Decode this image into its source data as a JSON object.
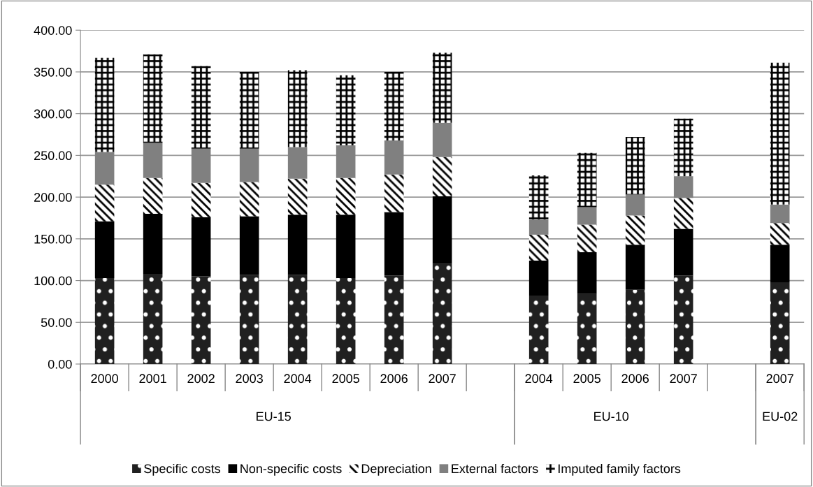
{
  "chart_data": {
    "type": "bar",
    "stacked": true,
    "categories": [
      "2000",
      "2001",
      "2002",
      "2003",
      "2004",
      "2005",
      "2006",
      "2007",
      null,
      "2004",
      "2005",
      "2006",
      "2007",
      null,
      "2007"
    ],
    "annotations": [
      "EU-15",
      "EU-10",
      "EU-02"
    ],
    "series": [
      {
        "name": "Specific costs",
        "color": "#202020",
        "values": [
          103,
          108,
          105,
          107,
          107,
          103,
          106,
          120,
          null,
          82,
          84,
          89,
          106,
          null,
          98
        ]
      },
      {
        "name": "Non-specific costs",
        "color": "#000000",
        "values": [
          68,
          72,
          71,
          70,
          72,
          76,
          76,
          81,
          null,
          42,
          50,
          54,
          56,
          null,
          45
        ]
      },
      {
        "name": "Depreciation",
        "color": "#ffffff",
        "values": [
          44,
          43,
          41,
          41,
          43,
          44,
          45,
          47,
          null,
          31,
          33,
          35,
          37,
          null,
          26
        ]
      },
      {
        "name": "External factors",
        "color": "#808080",
        "values": [
          39,
          42,
          41,
          40,
          38,
          39,
          41,
          41,
          null,
          18,
          21,
          25,
          26,
          null,
          22
        ]
      },
      {
        "name": "Imputed family factors",
        "color": "#ffffff",
        "values": [
          113,
          106,
          99,
          92,
          92,
          84,
          82,
          84,
          null,
          53,
          65,
          69,
          69,
          null,
          170
        ]
      }
    ],
    "ylim": [
      0,
      400
    ],
    "yticks": [
      {
        "value": 0,
        "label": "0.00"
      },
      {
        "value": 50,
        "label": "50.00"
      },
      {
        "value": 100,
        "label": "100.00"
      },
      {
        "value": 150,
        "label": "150.00"
      },
      {
        "value": 200,
        "label": "200.00"
      },
      {
        "value": 250,
        "label": "250.00"
      },
      {
        "value": 300,
        "label": "300.00"
      },
      {
        "value": 350,
        "label": "350.00"
      },
      {
        "value": 400,
        "label": "400.00"
      }
    ],
    "grid": "y",
    "legend": "bottom"
  }
}
